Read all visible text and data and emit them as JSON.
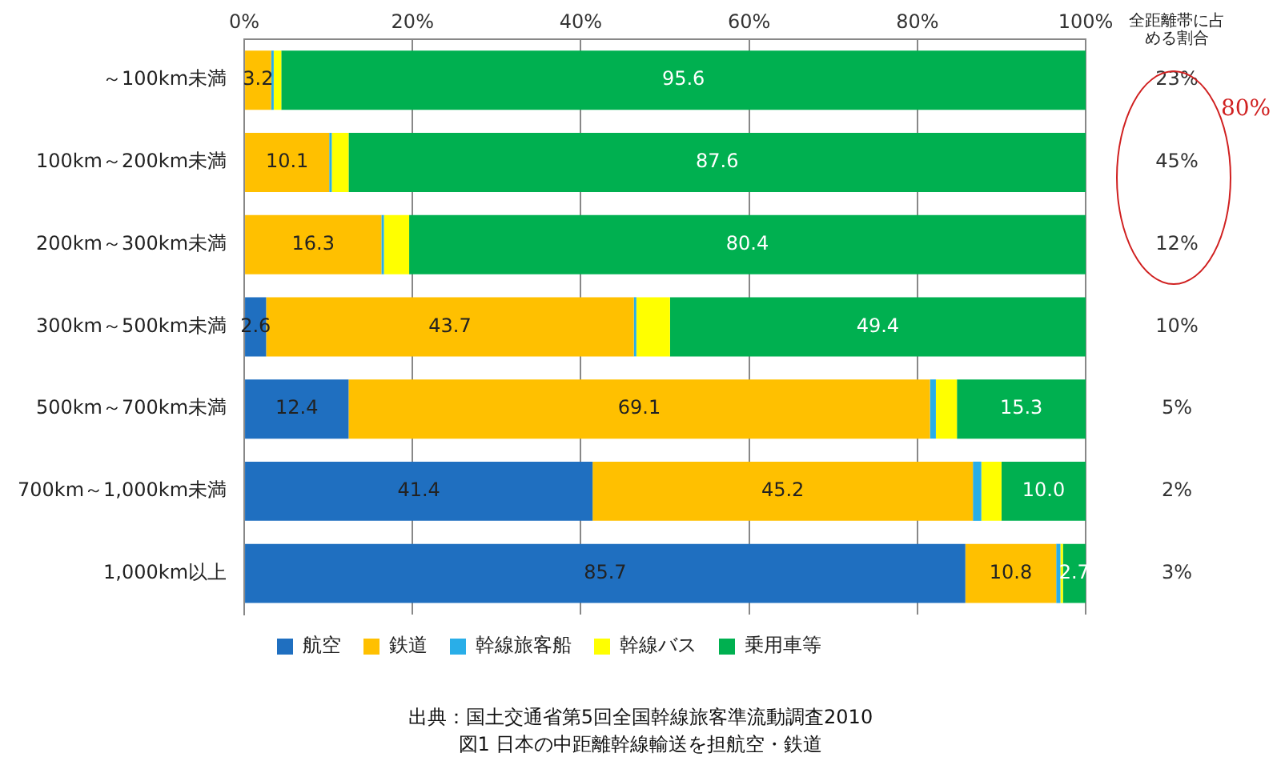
{
  "chart_data": {
    "type": "bar",
    "orientation": "horizontal",
    "stacked": true,
    "title": "図1  日本の中距離幹線輸送を担航空・鉄道",
    "categories": [
      "～100km未満",
      "100km～200km未満",
      "200km～300km未満",
      "300km～500km未満",
      "500km～700km未満",
      "700km～1,000km未満",
      "1,000km以上"
    ],
    "series": [
      {
        "name": "航空",
        "color": "#1f6fc0",
        "values": [
          0,
          0,
          0,
          2.6,
          12.4,
          41.4,
          85.7
        ],
        "value_labels": [
          null,
          null,
          null,
          "2.6",
          "12.4",
          "41.4",
          "85.7"
        ]
      },
      {
        "name": "鉄道",
        "color": "#ffc000",
        "values": [
          3.2,
          10.1,
          16.3,
          43.7,
          69.1,
          45.2,
          10.8
        ],
        "value_labels": [
          "3.2",
          "10.1",
          "16.3",
          "43.7",
          "69.1",
          "45.2",
          "10.8"
        ]
      },
      {
        "name": "幹線旅客船",
        "color": "#29aee8",
        "values": [
          0.3,
          0.3,
          0.3,
          0.3,
          0.7,
          1.0,
          0.5
        ],
        "value_labels": [
          null,
          null,
          null,
          null,
          null,
          null,
          null
        ]
      },
      {
        "name": "幹線バス",
        "color": "#ffff00",
        "values": [
          0.9,
          2.0,
          3.0,
          4.0,
          2.5,
          2.4,
          0.3
        ],
        "value_labels": [
          null,
          null,
          null,
          null,
          null,
          null,
          null
        ]
      },
      {
        "name": "乗用車等",
        "color": "#00b050",
        "values": [
          95.6,
          87.6,
          80.4,
          49.4,
          15.3,
          10.0,
          2.7
        ],
        "value_labels": [
          "95.6",
          "87.6",
          "80.4",
          "49.4",
          "15.3",
          "10.0",
          "2.7"
        ]
      }
    ],
    "xlim": [
      0,
      100
    ],
    "xticks": [
      {
        "value": 0,
        "label": "0%"
      },
      {
        "value": 20,
        "label": "20%"
      },
      {
        "value": 40,
        "label": "40%"
      },
      {
        "value": 60,
        "label": "60%"
      },
      {
        "value": 80,
        "label": "80%"
      },
      {
        "value": 100,
        "label": "100%"
      }
    ],
    "grid": "x",
    "legend": "bottom",
    "annotations": [
      "全距離帯に占める割合",
      "23%",
      "45%",
      "12%",
      "10%",
      "5%",
      "2%",
      "3%",
      "80%",
      "出典：国土交通省第5回全国幹線旅客準流動調査2010"
    ]
  }
}
